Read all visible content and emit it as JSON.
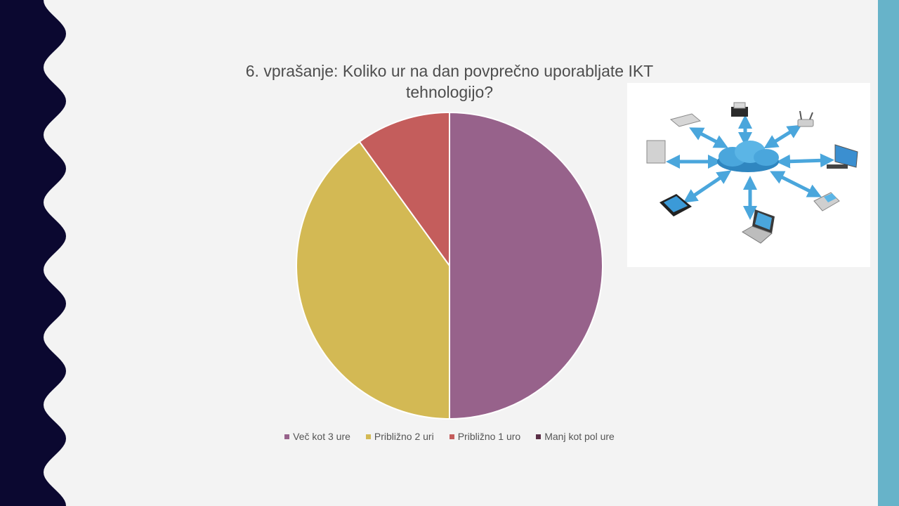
{
  "slide": {
    "title": "6. vprašanje: Koliko ur na dan povprečno uporabljate IKT tehnologijo?"
  },
  "chart_data": {
    "type": "pie",
    "title": "6. vprašanje: Koliko ur na dan povprečno uporabljate IKT tehnologijo?",
    "categories": [
      "Več kot 3 ure",
      "Približno 2 uri",
      "Približno 1 uro",
      "Manj kot pol ure"
    ],
    "values": [
      50,
      40,
      10,
      0
    ],
    "colors": [
      "#97628b",
      "#d3b954",
      "#c45d5c",
      "#5a2f47"
    ],
    "legend_position": "bottom",
    "start_angle_deg": 0,
    "direction": "clockwise"
  },
  "colors": {
    "left_band": "#0b0830",
    "right_stripe": "#67b3c9",
    "background": "#f3f3f3",
    "cloud": "#4aa6dc"
  },
  "image": {
    "icon": "network-cloud-devices-icon"
  }
}
